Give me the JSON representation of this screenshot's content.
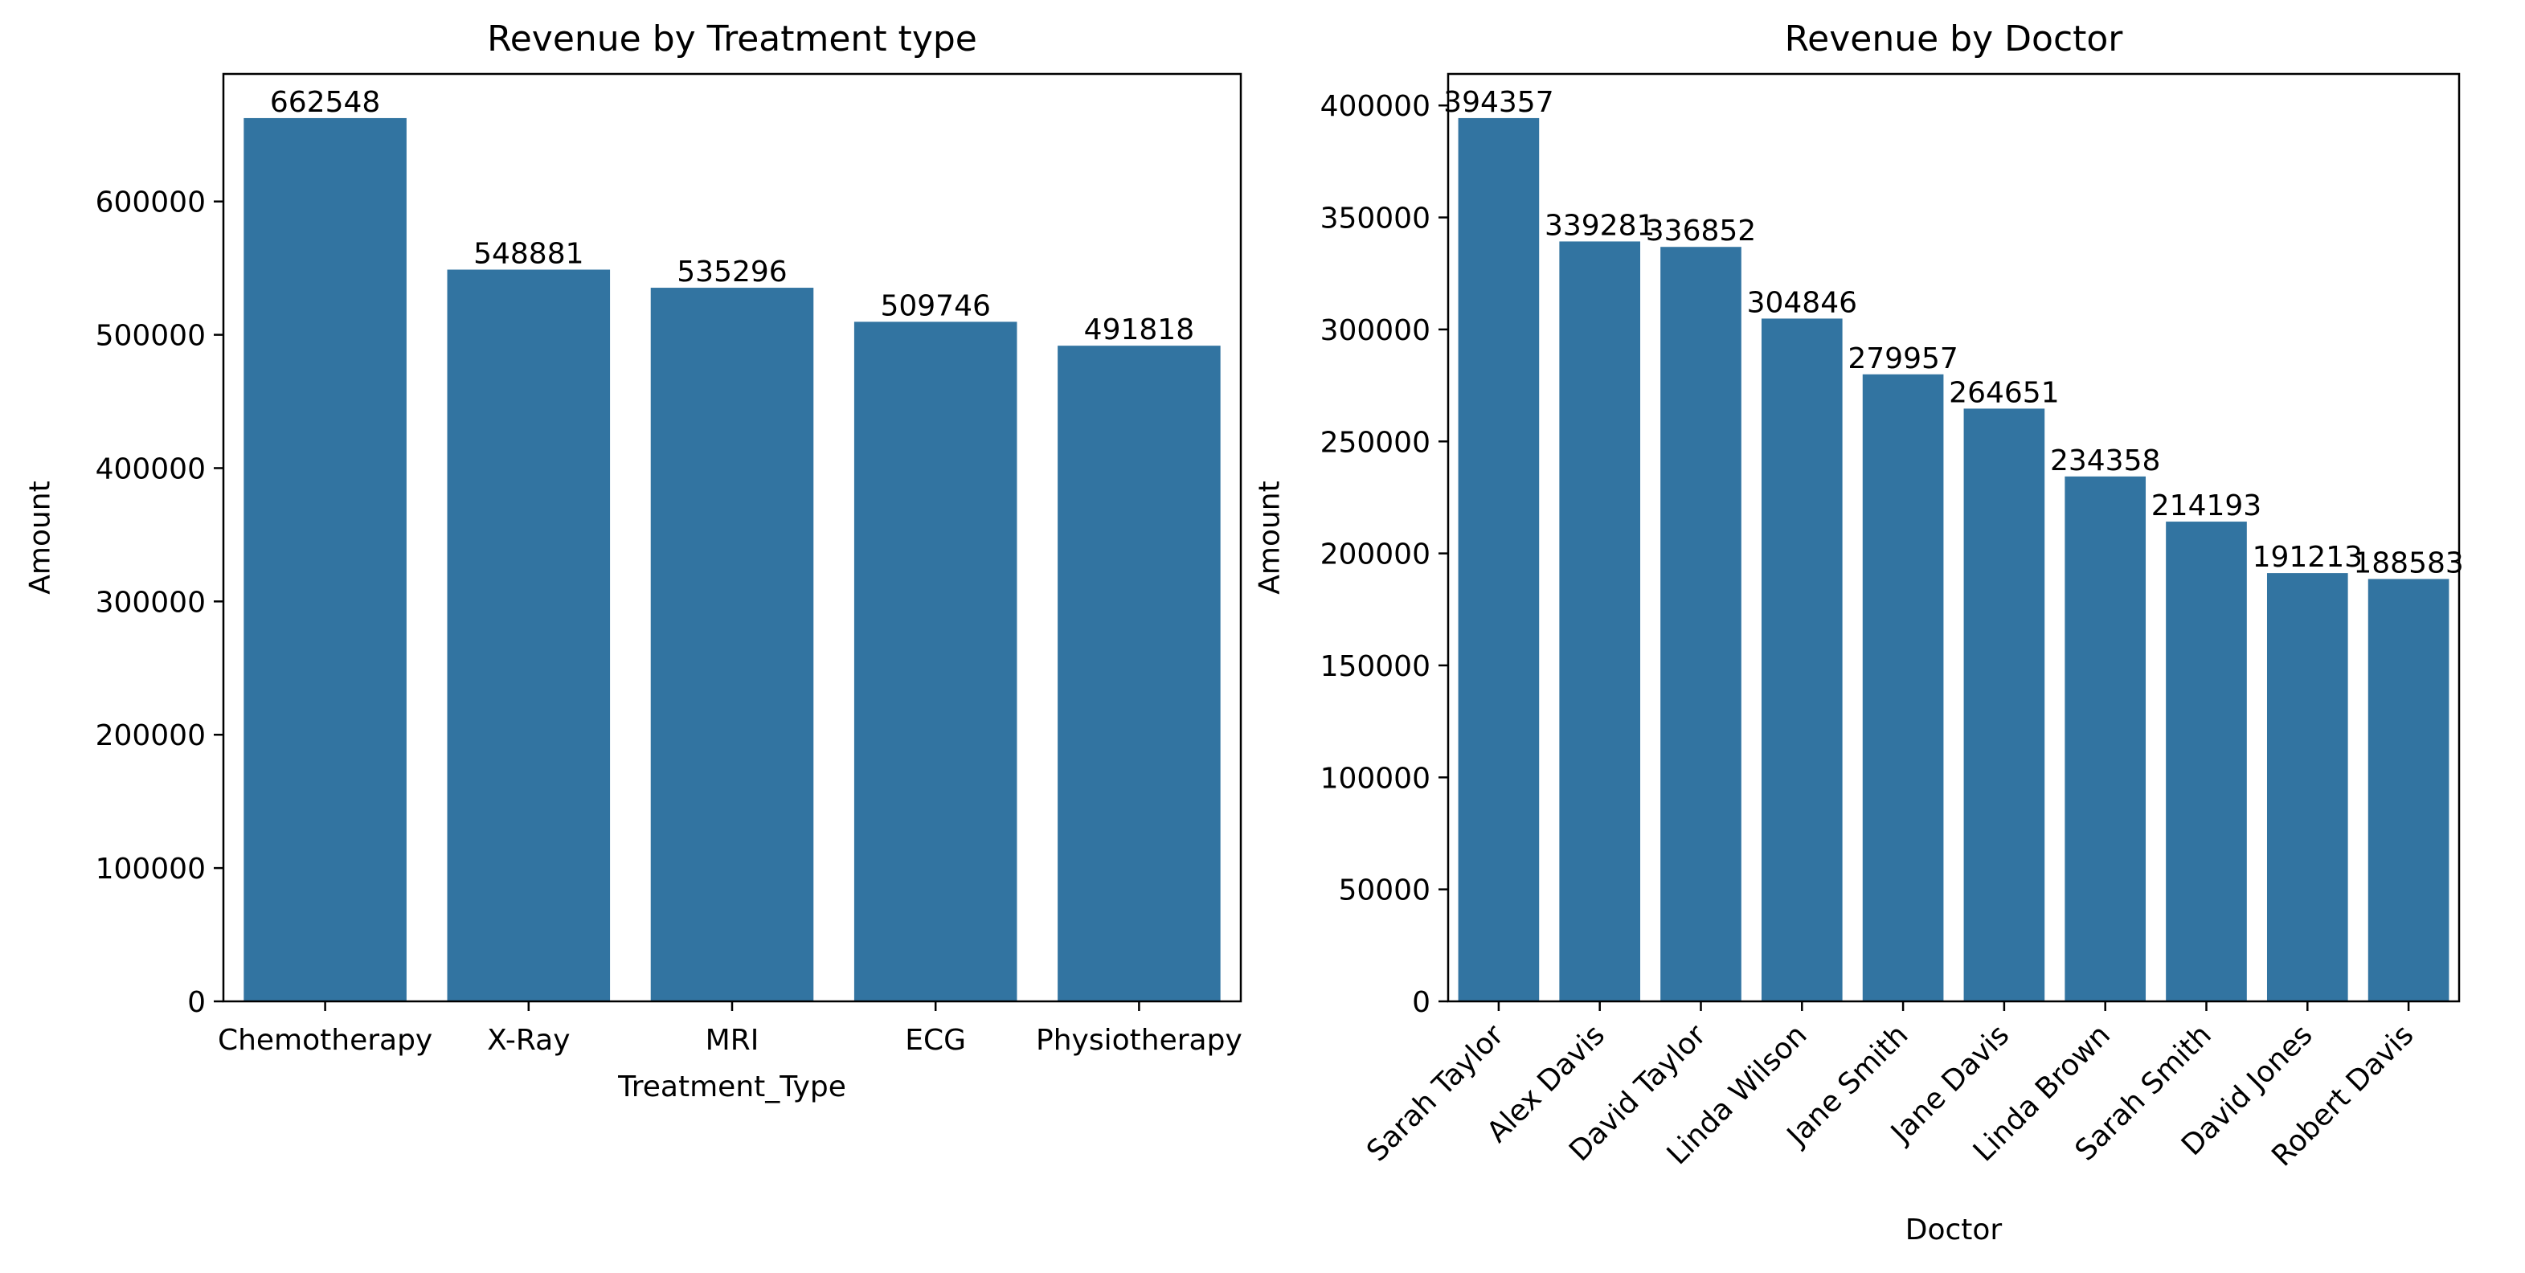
{
  "colors": {
    "bar": "#3274a1",
    "axis": "#000000",
    "background": "#ffffff"
  },
  "chart_data": [
    {
      "type": "bar",
      "title": "Revenue by Treatment type",
      "xlabel": "Treatment_Type",
      "ylabel": "Amount",
      "categories": [
        "Chemotherapy",
        "X-Ray",
        "MRI",
        "ECG",
        "Physiotherapy"
      ],
      "values": [
        662548,
        548881,
        535296,
        509746,
        491818
      ],
      "data_labels": [
        "662548",
        "548881",
        "535296",
        "509746",
        "491818"
      ],
      "ylim": [
        0,
        695675
      ],
      "yticks": [
        0,
        100000,
        200000,
        300000,
        400000,
        500000,
        600000
      ],
      "ytick_labels": [
        "0",
        "100000",
        "200000",
        "300000",
        "400000",
        "500000",
        "600000"
      ],
      "xtick_rotation": 0,
      "grid": false
    },
    {
      "type": "bar",
      "title": "Revenue by Doctor",
      "xlabel": "Doctor",
      "ylabel": "Amount",
      "categories": [
        "Sarah Taylor",
        "Alex Davis",
        "David Taylor",
        "Linda Wilson",
        "Jane Smith",
        "Jane Davis",
        "Linda Brown",
        "Sarah Smith",
        "David Jones",
        "Robert Davis"
      ],
      "values": [
        394357,
        339281,
        336852,
        304846,
        279957,
        264651,
        234358,
        214193,
        191213,
        188583
      ],
      "data_labels": [
        "394357",
        "339281",
        "336852",
        "304846",
        "279957",
        "264651",
        "234358",
        "214193",
        "191213",
        "188583"
      ],
      "ylim": [
        0,
        414075
      ],
      "yticks": [
        0,
        50000,
        100000,
        150000,
        200000,
        250000,
        300000,
        350000,
        400000
      ],
      "ytick_labels": [
        "0",
        "50000",
        "100000",
        "150000",
        "200000",
        "250000",
        "300000",
        "350000",
        "400000"
      ],
      "xtick_rotation": -45,
      "grid": false
    }
  ]
}
